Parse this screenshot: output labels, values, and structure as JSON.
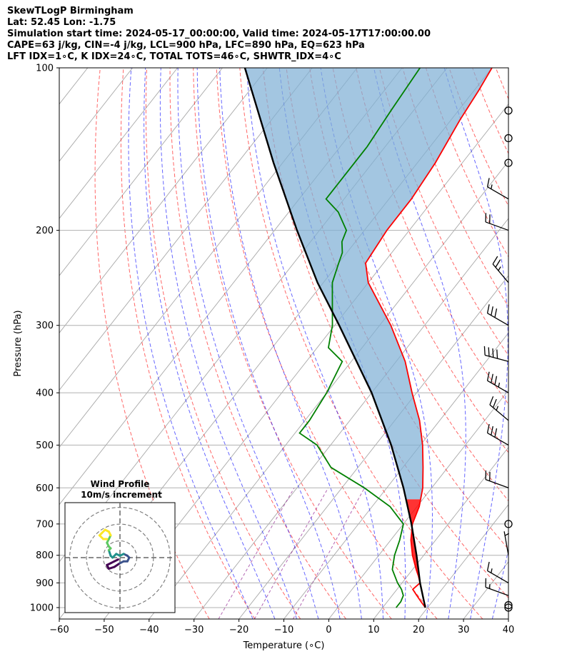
{
  "header": {
    "line1": "SkewTLogP Birmingham",
    "line2": "Lat: 52.45   Lon: -1.75",
    "line3": "Simulation start time: 2024-05-17_00:00:00, Valid time: 2024-05-17T17:00:00.00",
    "line4": "CAPE=63 j/kg, CIN=-4 j/kg, LCL=900 hPa, LFC=890 hPa, EQ=623 hPa",
    "line5": "LFT IDX=1∘C, K IDX=24∘C, TOTAL TOTS=46∘C, SHWTR_IDX=4∘C"
  },
  "colors": {
    "temperature": "#ff0000",
    "dewpoint": "#008000",
    "parcel": "#000000",
    "cape_fill": "#7fb0d5",
    "cin_fill": "#ff0000",
    "dry_adiabat": "#ff0000",
    "moist_adiabat": "#0000ff",
    "mixing_ratio": "#800080",
    "isotherm": "#808080"
  },
  "chart_data": [
    {
      "type": "line",
      "subtype": "skew-T log-P",
      "xlabel": "Temperature (∘C)",
      "ylabel": "Pressure (hPa)",
      "xlim": [
        -60,
        40
      ],
      "ylim": [
        1050,
        100
      ],
      "y_scale": "log",
      "grid": true,
      "x_ticks": [
        -60,
        -50,
        -40,
        -30,
        -20,
        -10,
        0,
        10,
        20,
        30,
        40
      ],
      "y_ticks": [
        1000,
        900,
        800,
        700,
        600,
        500,
        400,
        300,
        200,
        100
      ],
      "series": [
        {
          "key": "temperature",
          "p": [
            1000,
            975,
            950,
            925,
            900,
            875,
            850,
            800,
            750,
            700,
            650,
            600,
            550,
            500,
            450,
            400,
            350,
            300,
            250,
            230,
            200,
            175,
            150,
            125,
            110,
            100
          ],
          "t": [
            19.5,
            17.5,
            15.5,
            13.5,
            14.0,
            12.5,
            10.8,
            7.5,
            4.5,
            2.0,
            0.5,
            -2.0,
            -5.5,
            -9.5,
            -14.5,
            -21.0,
            -28.0,
            -37.5,
            -50.0,
            -54.0,
            -55.0,
            -55.0,
            -56.0,
            -58.0,
            -59.0,
            -60.0
          ]
        },
        {
          "key": "dewpoint",
          "p": [
            1000,
            975,
            950,
            925,
            900,
            850,
            800,
            750,
            700,
            650,
            600,
            550,
            500,
            475,
            450,
            400,
            350,
            330,
            300,
            250,
            230,
            220,
            210,
            200,
            185,
            175,
            160,
            140,
            120,
            100
          ],
          "t": [
            13.0,
            13.0,
            12.5,
            11.0,
            9.0,
            5.5,
            3.5,
            2.0,
            0.0,
            -6.0,
            -15.0,
            -26.0,
            -33.0,
            -39.0,
            -39.0,
            -40.0,
            -42.0,
            -47.5,
            -50.5,
            -58.0,
            -60.0,
            -61.0,
            -63.0,
            -64.0,
            -69.0,
            -74.0,
            -74.0,
            -74.0,
            -75.0,
            -76.0
          ]
        },
        {
          "key": "parcel",
          "p": [
            1000,
            900,
            850,
            800,
            700,
            600,
            500,
            400,
            300,
            250,
            200,
            150,
            100
          ],
          "t": [
            19.5,
            14.0,
            11.3,
            8.4,
            1.8,
            -6.3,
            -16.5,
            -30.0,
            -49.0,
            -61.3,
            -75.0,
            -92.0,
            -115.0
          ]
        }
      ],
      "wind_barbs": {
        "p": [
          1000,
          990,
          950,
          900,
          800,
          700,
          600,
          500,
          450,
          400,
          350,
          300,
          250,
          200,
          175,
          150,
          135,
          120
        ],
        "speed_kt": [
          0,
          0,
          15,
          15,
          5,
          0,
          20,
          30,
          25,
          35,
          40,
          30,
          25,
          20,
          15,
          0,
          0,
          0
        ],
        "direction_deg": [
          0,
          0,
          290,
          300,
          350,
          0,
          290,
          300,
          310,
          300,
          285,
          300,
          320,
          290,
          300,
          0,
          0,
          0
        ]
      },
      "shading": {
        "cape": "blue",
        "cin": "red"
      }
    },
    {
      "type": "scatter",
      "subtype": "hodograph",
      "title": "Wind Profile",
      "subtitle": "10m/s increment",
      "ring_step_ms": 10,
      "rings": 3,
      "u": [
        -1,
        -3,
        -5,
        -7,
        -6,
        -3,
        0,
        2,
        4,
        5,
        4,
        2,
        0,
        -2,
        -4,
        -5,
        -6,
        -5,
        -6,
        -7,
        -6,
        -5,
        -6,
        -8,
        -10,
        -11,
        -9,
        -7
      ],
      "v": [
        -1,
        -2,
        -3,
        -4,
        -6,
        -5,
        -3,
        -2,
        -2,
        0,
        1,
        2,
        1,
        2,
        0,
        1,
        4,
        5,
        6,
        8,
        10,
        12,
        14,
        15,
        13,
        12,
        10,
        10
      ]
    }
  ]
}
